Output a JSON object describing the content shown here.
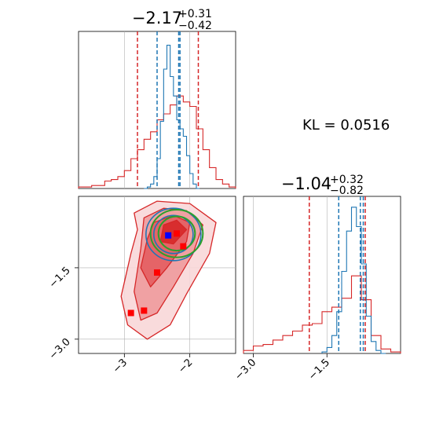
{
  "chart_data": {
    "type": "corner",
    "annotation": "KL = 0.0516",
    "series_colors": {
      "red": "#d62728",
      "blue": "#1f77b4",
      "green": "#2ca02c",
      "marker_blue": "#0000ff",
      "marker_red": "#ff0000"
    },
    "param1": {
      "title_main": "−2.17",
      "title_sup": "+0.31",
      "title_sub": "−0.42",
      "range": [
        -3.7,
        -1.3
      ],
      "ticks": [
        -3,
        -2
      ],
      "tick_labels": [
        "−3",
        "−2"
      ],
      "quantiles_red": [
        -2.8,
        -1.87
      ],
      "quantiles_blue": [
        -2.5,
        -2.17,
        -2.15
      ],
      "hist_red": {
        "x": [
          -3.7,
          -3.6,
          -3.5,
          -3.4,
          -3.3,
          -3.2,
          -3.1,
          -3.0,
          -2.9,
          -2.8,
          -2.7,
          -2.6,
          -2.5,
          -2.4,
          -2.3,
          -2.2,
          -2.1,
          -2.0,
          -1.9,
          -1.8,
          -1.7,
          -1.6,
          -1.5,
          -1.4
        ],
        "y": [
          0.01,
          0.01,
          0.02,
          0.02,
          0.05,
          0.06,
          0.08,
          0.12,
          0.2,
          0.26,
          0.33,
          0.38,
          0.46,
          0.5,
          0.56,
          0.62,
          0.58,
          0.55,
          0.4,
          0.26,
          0.14,
          0.06,
          0.03,
          0.01
        ]
      },
      "hist_blue": {
        "x": [
          -2.7,
          -2.65,
          -2.6,
          -2.55,
          -2.5,
          -2.45,
          -2.4,
          -2.35,
          -2.3,
          -2.25,
          -2.2,
          -2.15,
          -2.1,
          -2.05,
          -2.0,
          -1.95,
          -1.9
        ],
        "y": [
          0.0,
          0.01,
          0.03,
          0.08,
          0.2,
          0.45,
          0.8,
          0.96,
          0.75,
          0.62,
          0.46,
          0.4,
          0.35,
          0.22,
          0.1,
          0.03,
          0.0
        ]
      }
    },
    "param2": {
      "title_main": "−1.04",
      "title_sup": "+0.32",
      "title_sub": "−0.82",
      "range": [
        -3.2,
        0.0
      ],
      "ticks": [
        -3.0,
        -1.5
      ],
      "tick_labels": [
        "−3.0",
        "−1.5"
      ],
      "quantiles_red": [
        -1.86,
        -0.72
      ],
      "quantiles_blue": [
        -1.26,
        -0.82,
        -0.76
      ],
      "hist_red": {
        "x": [
          -3.2,
          -3.0,
          -2.8,
          -2.6,
          -2.4,
          -2.2,
          -2.0,
          -1.8,
          -1.6,
          -1.4,
          -1.2,
          -1.0,
          -0.8,
          -0.6,
          -0.4,
          -0.2
        ],
        "y": [
          0.02,
          0.05,
          0.06,
          0.09,
          0.12,
          0.15,
          0.19,
          0.2,
          0.28,
          0.31,
          0.37,
          0.52,
          0.36,
          0.12,
          0.03,
          0.01
        ]
      },
      "hist_blue": {
        "x": [
          -1.6,
          -1.5,
          -1.4,
          -1.3,
          -1.2,
          -1.1,
          -1.0,
          -0.9,
          -0.8,
          -0.7,
          -0.6,
          -0.5,
          -0.4
        ],
        "y": [
          0.01,
          0.04,
          0.12,
          0.28,
          0.55,
          0.82,
          0.98,
          0.85,
          0.6,
          0.25,
          0.08,
          0.02,
          0.0
        ]
      }
    },
    "joint": {
      "xrange": [
        -3.7,
        -1.3
      ],
      "yrange": [
        -3.3,
        0.0
      ],
      "yticks": [
        -1.5,
        -3.0
      ],
      "ytick_labels": [
        "−1.5",
        "−3.0"
      ],
      "xticks": [
        -3,
        -2
      ],
      "xtick_labels": [
        "−3",
        "−2"
      ],
      "red_contours": [
        [
          [
            -2.85,
            -0.35
          ],
          [
            -2.5,
            -0.1
          ],
          [
            -2.0,
            -0.15
          ],
          [
            -1.6,
            -0.55
          ],
          [
            -1.7,
            -1.2
          ],
          [
            -2.05,
            -2.05
          ],
          [
            -2.3,
            -2.7
          ],
          [
            -2.65,
            -3.0
          ],
          [
            -2.95,
            -2.7
          ],
          [
            -3.05,
            -2.1
          ],
          [
            -2.9,
            -1.2
          ],
          [
            -2.8,
            -0.7
          ]
        ],
        [
          [
            -2.7,
            -0.45
          ],
          [
            -2.4,
            -0.25
          ],
          [
            -2.05,
            -0.3
          ],
          [
            -1.8,
            -0.6
          ],
          [
            -1.95,
            -1.2
          ],
          [
            -2.25,
            -1.9
          ],
          [
            -2.5,
            -2.45
          ],
          [
            -2.75,
            -2.6
          ],
          [
            -2.85,
            -2.0
          ],
          [
            -2.75,
            -1.1
          ]
        ],
        [
          [
            -2.55,
            -0.55
          ],
          [
            -2.25,
            -0.4
          ],
          [
            -2.0,
            -0.55
          ],
          [
            -2.05,
            -0.95
          ],
          [
            -2.35,
            -1.5
          ],
          [
            -2.6,
            -1.9
          ],
          [
            -2.75,
            -1.5
          ],
          [
            -2.65,
            -0.9
          ]
        ],
        [
          [
            -2.4,
            -0.6
          ],
          [
            -2.2,
            -0.5
          ],
          [
            -2.05,
            -0.7
          ],
          [
            -2.25,
            -1.0
          ],
          [
            -2.45,
            -0.95
          ]
        ]
      ],
      "blue_contours": [
        {
          "cx": -2.25,
          "cy": -0.8,
          "rx": 0.42,
          "ry": 0.55
        },
        {
          "cx": -2.25,
          "cy": -0.8,
          "rx": 0.3,
          "ry": 0.4
        }
      ],
      "green_contours": [
        {
          "cx": -2.2,
          "cy": -0.78,
          "rx": 0.4,
          "ry": 0.5
        },
        {
          "cx": -2.2,
          "cy": -0.78,
          "rx": 0.28,
          "ry": 0.36
        }
      ],
      "blue_marker": [
        -2.33,
        -0.82
      ],
      "red_markers": [
        [
          -2.2,
          -0.78
        ],
        [
          -2.1,
          -1.05
        ],
        [
          -2.5,
          -1.6
        ],
        [
          -2.7,
          -2.4
        ],
        [
          -2.9,
          -2.45
        ]
      ]
    }
  }
}
